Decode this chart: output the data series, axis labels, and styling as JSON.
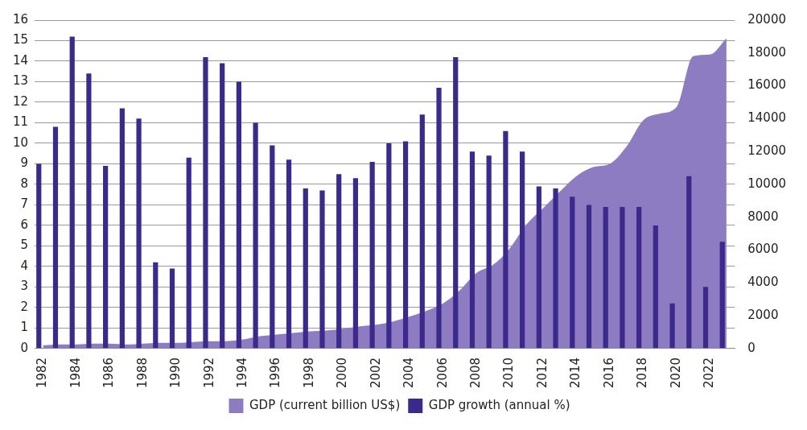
{
  "chart_data": {
    "type": "bar",
    "categories": [
      "1982",
      null,
      "1984",
      null,
      "1986",
      null,
      "1988",
      null,
      "1990",
      null,
      "1992",
      null,
      "1994",
      null,
      "1996",
      null,
      "1998",
      null,
      "2000",
      null,
      "2002",
      null,
      "2004",
      null,
      "2006",
      null,
      "2008",
      null,
      "2010",
      null,
      "2012",
      null,
      "2014",
      null,
      "2016",
      null,
      "2018",
      null,
      "2020",
      null,
      "2022",
      null
    ],
    "series": [
      {
        "name": "GDP (current billion US$)",
        "type": "area",
        "axis": "y2",
        "color": "#8e7cc3",
        "values": [
          200,
          250,
          250,
          300,
          300,
          250,
          300,
          350,
          350,
          400,
          450,
          450,
          550,
          750,
          850,
          950,
          1050,
          1100,
          1200,
          1350,
          1450,
          1650,
          1950,
          2300,
          2750,
          3550,
          4600,
          5100,
          6100,
          7550,
          8550,
          9550,
          10500,
          11050,
          11250,
          12300,
          13900,
          14300,
          14700,
          17800,
          17900,
          18900
        ]
      },
      {
        "name": "GDP growth (annual %)",
        "color": "#3b2a8c",
        "values": [
          9.0,
          10.8,
          15.2,
          13.4,
          8.9,
          11.7,
          11.2,
          4.2,
          3.9,
          9.3,
          14.2,
          13.9,
          13.0,
          11.0,
          9.9,
          9.2,
          7.8,
          7.7,
          8.5,
          8.3,
          9.1,
          10.0,
          10.1,
          11.4,
          12.7,
          14.2,
          9.6,
          9.4,
          10.6,
          9.6,
          7.9,
          7.8,
          7.4,
          7.0,
          6.9,
          6.9,
          6.9,
          6.0,
          2.2,
          8.4,
          3.0,
          5.2
        ]
      }
    ],
    "ylim": [
      0,
      16
    ],
    "yticks": [
      0,
      1,
      2,
      3,
      4,
      5,
      6,
      7,
      8,
      9,
      10,
      11,
      12,
      13,
      14,
      15,
      16
    ],
    "y2lim": [
      0,
      20000
    ],
    "y2ticks": [
      0,
      2000,
      4000,
      6000,
      8000,
      10000,
      12000,
      14000,
      16000,
      18000,
      20000
    ],
    "grid": "y",
    "legend": "bottom"
  }
}
